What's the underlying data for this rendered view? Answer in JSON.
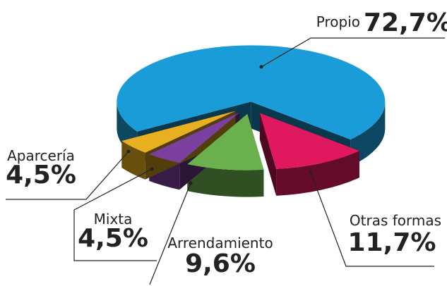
{
  "chart_data": {
    "type": "pie",
    "categories": [
      "Propio",
      "Otras formas",
      "Arrendamiento",
      "Mixta",
      "Aparcería"
    ],
    "values": [
      72.7,
      11.7,
      9.6,
      4.5,
      4.5
    ],
    "value_labels": [
      "72,7%",
      "11,7%",
      "9,6%",
      "4,5%",
      "4,5%"
    ],
    "colors": [
      "#1a9cd8",
      "#e0185e",
      "#6ab04c",
      "#7b3fa0",
      "#e8b020"
    ]
  }
}
